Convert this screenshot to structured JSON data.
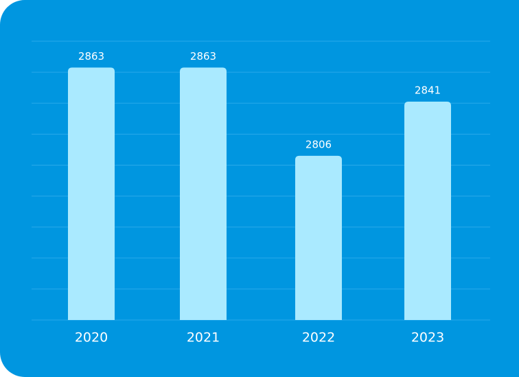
{
  "chart_data": {
    "type": "bar",
    "categories": [
      "2020",
      "2021",
      "2022",
      "2023"
    ],
    "values": [
      2863,
      2863,
      2806,
      2841
    ],
    "color": "#aaeaff",
    "ylim": [
      2700,
      2880
    ]
  }
}
